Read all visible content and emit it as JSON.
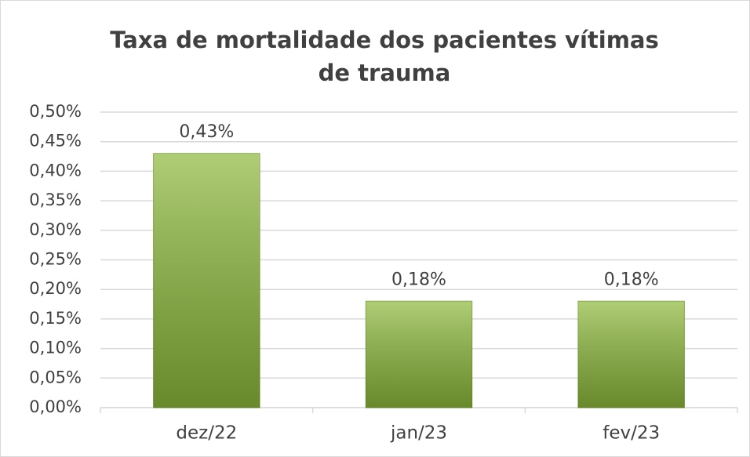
{
  "chart_data": {
    "type": "bar",
    "title": "Taxa de mortalidade dos pacientes vítimas de trauma",
    "categories": [
      "dez/22",
      "jan/23",
      "fev/23"
    ],
    "values": [
      0.43,
      0.18,
      0.18
    ],
    "value_labels": [
      "0,43%",
      "0,18%",
      "0,18%"
    ],
    "color": "#8cb83a",
    "ylim": [
      0,
      0.5
    ],
    "yticks": [
      {
        "value": 0,
        "label": "0,00%"
      },
      {
        "value": 0.05,
        "label": "0,05%"
      },
      {
        "value": 0.1,
        "label": "0,10%"
      },
      {
        "value": 0.15,
        "label": "0,15%"
      },
      {
        "value": 0.2,
        "label": "0,20%"
      },
      {
        "value": 0.25,
        "label": "0,25%"
      },
      {
        "value": 0.3,
        "label": "0,30%"
      },
      {
        "value": 0.35,
        "label": "0,35%"
      },
      {
        "value": 0.4,
        "label": "0,40%"
      },
      {
        "value": 0.45,
        "label": "0,45%"
      },
      {
        "value": 0.5,
        "label": "0,50%"
      }
    ],
    "grid": true
  }
}
